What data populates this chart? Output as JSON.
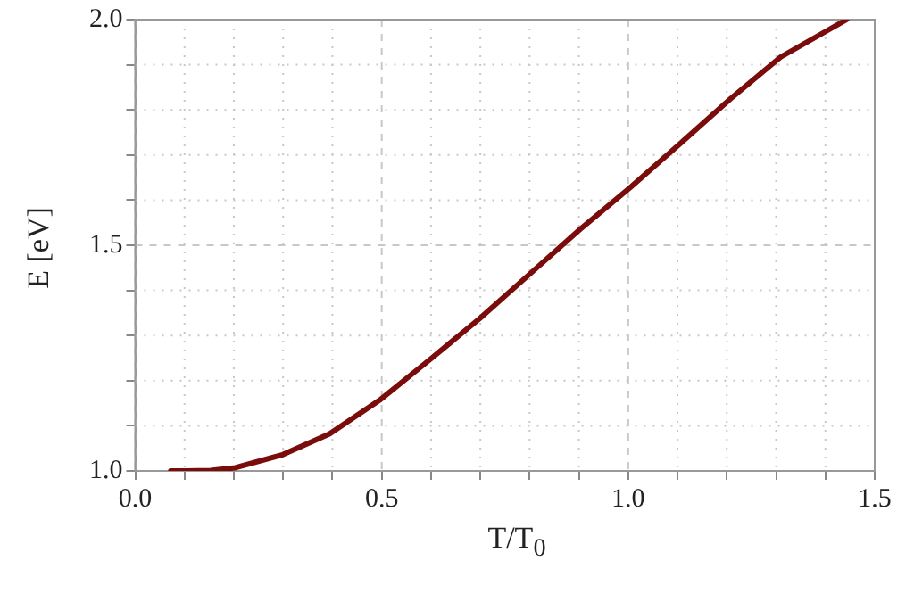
{
  "chart_data": {
    "type": "line",
    "xlabel": "T/T$_{0}$",
    "ylabel": "E [eV]",
    "series": [
      {
        "color": "#7b0c0c",
        "x": [
          0.072,
          0.102,
          0.153,
          0.203,
          0.299,
          0.394,
          0.496,
          0.597,
          0.699,
          0.801,
          0.903,
          1.004,
          1.106,
          1.208,
          1.309,
          1.443
        ],
        "values": [
          1.0,
          1.0,
          1.001,
          1.007,
          1.036,
          1.082,
          1.157,
          1.246,
          1.338,
          1.437,
          1.536,
          1.628,
          1.726,
          1.825,
          1.917,
          2.0
        ]
      }
    ],
    "xlim": [
      0,
      1.5
    ],
    "ylim": [
      1.0,
      2.0
    ],
    "xticks": [
      {
        "value": 0,
        "label": "0.0"
      },
      {
        "value": 0.1,
        "label": null
      },
      {
        "value": 0.2,
        "label": null
      },
      {
        "value": 0.3,
        "label": null
      },
      {
        "value": 0.4,
        "label": null
      },
      {
        "value": 0.5,
        "label": "0.5"
      },
      {
        "value": 0.6,
        "label": null
      },
      {
        "value": 0.7,
        "label": null
      },
      {
        "value": 0.8,
        "label": null
      },
      {
        "value": 0.9,
        "label": null
      },
      {
        "value": 1.0,
        "label": "1.0"
      },
      {
        "value": 1.1,
        "label": null
      },
      {
        "value": 1.2,
        "label": null
      },
      {
        "value": 1.3,
        "label": null
      },
      {
        "value": 1.4,
        "label": null
      },
      {
        "value": 1.5,
        "label": "1.5"
      }
    ],
    "yticks": [
      {
        "value": 1.0,
        "label": "1.0"
      },
      {
        "value": 1.1,
        "label": null
      },
      {
        "value": 1.2,
        "label": null
      },
      {
        "value": 1.3,
        "label": null
      },
      {
        "value": 1.4,
        "label": null
      },
      {
        "value": 1.5,
        "label": "1.5"
      },
      {
        "value": 1.6,
        "label": null
      },
      {
        "value": 1.7,
        "label": null
      },
      {
        "value": 1.8,
        "label": null
      },
      {
        "value": 1.9,
        "label": null
      },
      {
        "value": 2.0,
        "label": "2.0"
      }
    ],
    "grid": true,
    "marker": "none",
    "line_style": "solid"
  }
}
